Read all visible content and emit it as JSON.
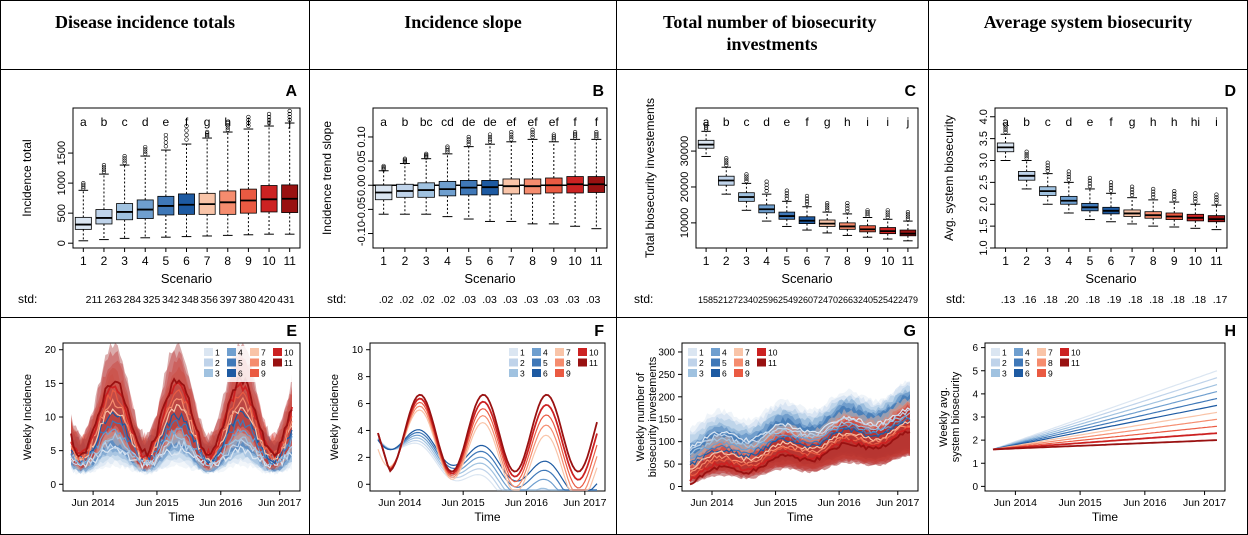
{
  "headers": [
    "Disease incidence totals",
    "Incidence slope",
    "Total number of biosecurity investments",
    "Average system biosecurity"
  ],
  "std_label": "std:",
  "chart_data": [
    {
      "type": "box",
      "panel": "A",
      "xlabel": "Scenario",
      "ylabel": "Incidence total",
      "ylim": [
        -80,
        2250
      ],
      "yticks": [
        0,
        500,
        1000,
        1500
      ],
      "ytick_labels": [
        "0",
        "500",
        "1000",
        "1500"
      ],
      "categories": [
        "1",
        "2",
        "3",
        "4",
        "5",
        "6",
        "7",
        "8",
        "9",
        "10",
        "11"
      ],
      "letters": [
        "a",
        "b",
        "c",
        "d",
        "e",
        "f",
        "g",
        "h",
        "i",
        "i",
        "j"
      ],
      "q1": [
        230,
        320,
        390,
        410,
        470,
        480,
        480,
        480,
        500,
        520,
        510
      ],
      "median": [
        310,
        420,
        520,
        560,
        620,
        640,
        650,
        680,
        710,
        730,
        740
      ],
      "q3": [
        430,
        560,
        660,
        720,
        780,
        820,
        830,
        870,
        900,
        960,
        970
      ],
      "whisker_low": [
        40,
        60,
        80,
        90,
        100,
        110,
        120,
        130,
        140,
        150,
        150
      ],
      "whisker_high": [
        880,
        1150,
        1300,
        1450,
        1550,
        1650,
        1750,
        1850,
        1900,
        1950,
        2000
      ],
      "outlier_max": [
        1000,
        1300,
        1450,
        1600,
        1800,
        1950,
        1850,
        2000,
        2100,
        2150,
        2200
      ],
      "std": [
        "211",
        "263",
        "284",
        "325",
        "342",
        "348",
        "356",
        "397",
        "380",
        "420",
        "431"
      ]
    },
    {
      "type": "box",
      "panel": "B",
      "xlabel": "Scenario",
      "ylabel": "Incidence trend slope",
      "ylim": [
        -0.13,
        0.16
      ],
      "yticks": [
        -0.1,
        -0.05,
        0.0,
        0.05,
        0.1
      ],
      "ytick_labels": [
        "-0.10",
        "-0.05",
        "0.00",
        "0.05",
        "0.10"
      ],
      "hline": 0.0,
      "categories": [
        "1",
        "2",
        "3",
        "4",
        "5",
        "6",
        "7",
        "8",
        "9",
        "10",
        "11"
      ],
      "letters": [
        "a",
        "b",
        "bc",
        "cd",
        "de",
        "de",
        "ef",
        "ef",
        "ef",
        "f",
        "f"
      ],
      "q1": [
        -0.03,
        -0.025,
        -0.025,
        -0.022,
        -0.02,
        -0.02,
        -0.018,
        -0.018,
        -0.016,
        -0.016,
        -0.015
      ],
      "median": [
        -0.015,
        -0.012,
        -0.01,
        -0.008,
        -0.005,
        -0.004,
        -0.002,
        -0.002,
        0.0,
        0.002,
        0.002
      ],
      "q3": [
        0.0,
        0.002,
        0.005,
        0.008,
        0.01,
        0.01,
        0.013,
        0.013,
        0.015,
        0.018,
        0.018
      ],
      "whisker_low": [
        -0.06,
        -0.06,
        -0.06,
        -0.065,
        -0.07,
        -0.075,
        -0.075,
        -0.08,
        -0.08,
        -0.085,
        -0.09
      ],
      "whisker_high": [
        0.03,
        0.045,
        0.055,
        0.065,
        0.08,
        0.085,
        0.09,
        0.095,
        0.09,
        0.095,
        0.095
      ],
      "outlier_max": [
        0.04,
        0.055,
        0.065,
        0.08,
        0.1,
        0.105,
        0.11,
        0.115,
        0.105,
        0.11,
        0.11
      ],
      "std": [
        ".02",
        ".02",
        ".02",
        ".02",
        ".03",
        ".03",
        ".03",
        ".03",
        ".03",
        ".03",
        ".03"
      ]
    },
    {
      "type": "box",
      "panel": "C",
      "xlabel": "Scenario",
      "ylabel": "Total biosecurity investements",
      "ylim": [
        3000,
        42000
      ],
      "yticks": [
        10000,
        20000,
        30000
      ],
      "ytick_labels": [
        "10000",
        "20000",
        "30000"
      ],
      "categories": [
        "1",
        "2",
        "3",
        "4",
        "5",
        "6",
        "7",
        "8",
        "9",
        "10",
        "11"
      ],
      "letters": [
        "a",
        "b",
        "c",
        "d",
        "e",
        "f",
        "g",
        "h",
        "i",
        "i",
        "j"
      ],
      "q1": [
        30800,
        20500,
        16000,
        12800,
        11000,
        9800,
        9000,
        8200,
        7500,
        7000,
        6400
      ],
      "median": [
        31800,
        21800,
        17200,
        13800,
        11900,
        10600,
        9800,
        9000,
        8200,
        7700,
        7000
      ],
      "q3": [
        33000,
        23000,
        18400,
        15000,
        13000,
        11700,
        10800,
        10000,
        9200,
        8700,
        8000
      ],
      "whisker_low": [
        28500,
        18000,
        13500,
        10500,
        9000,
        8000,
        7200,
        6500,
        6000,
        5500,
        5000
      ],
      "whisker_high": [
        35500,
        25500,
        21000,
        18000,
        16000,
        14500,
        13000,
        12500,
        11500,
        11000,
        10500
      ],
      "outlier_max": [
        37500,
        28000,
        23500,
        21500,
        19000,
        17500,
        15500,
        15500,
        13500,
        13500,
        13000
      ],
      "std": [
        "1585",
        "2127",
        "2340",
        "2596",
        "2549",
        "2607",
        "2470",
        "2663",
        "2405",
        "2542",
        "2479"
      ]
    },
    {
      "type": "box",
      "panel": "D",
      "xlabel": "Scenario",
      "ylabel": "Avg. system biosecurity",
      "ylim": [
        1.0,
        4.2
      ],
      "yticks": [
        1.0,
        1.5,
        2.0,
        2.5,
        3.0,
        3.5,
        4.0
      ],
      "ytick_labels": [
        "1.0",
        "1.5",
        "2.0",
        "2.5",
        "3.0",
        "3.5",
        "4.0"
      ],
      "categories": [
        "1",
        "2",
        "3",
        "4",
        "5",
        "6",
        "7",
        "8",
        "9",
        "10",
        "11"
      ],
      "letters": [
        "a",
        "b",
        "c",
        "d",
        "e",
        "f",
        "g",
        "h",
        "h",
        "hi",
        "i"
      ],
      "q1": [
        3.2,
        2.55,
        2.2,
        2.0,
        1.85,
        1.78,
        1.72,
        1.68,
        1.65,
        1.62,
        1.6
      ],
      "median": [
        3.3,
        2.65,
        2.3,
        2.08,
        1.93,
        1.85,
        1.79,
        1.75,
        1.72,
        1.69,
        1.66
      ],
      "q3": [
        3.4,
        2.75,
        2.4,
        2.18,
        2.02,
        1.93,
        1.87,
        1.83,
        1.8,
        1.77,
        1.74
      ],
      "whisker_low": [
        3.0,
        2.35,
        2.0,
        1.8,
        1.65,
        1.6,
        1.55,
        1.5,
        1.48,
        1.45,
        1.42
      ],
      "whisker_high": [
        3.6,
        3.0,
        2.7,
        2.5,
        2.35,
        2.25,
        2.15,
        2.1,
        2.05,
        2.0,
        1.98
      ],
      "outlier_max": [
        3.8,
        3.2,
        2.95,
        2.75,
        2.6,
        2.5,
        2.4,
        2.35,
        2.3,
        2.25,
        2.22
      ],
      "std": [
        ".13",
        ".16",
        ".18",
        ".20",
        ".18",
        ".19",
        ".18",
        ".18",
        ".18",
        ".18",
        ".17"
      ]
    },
    {
      "type": "line",
      "panel": "E",
      "xlabel": "Time",
      "ylabel": "Weekly Incidence",
      "ylim": [
        -1,
        21
      ],
      "yticks": [
        0,
        5,
        10,
        15,
        20
      ],
      "ytick_labels": [
        "0",
        "5",
        "10",
        "15",
        "20"
      ],
      "x_tick_labels": [
        "Jun 2014",
        "Jun 2015",
        "Jun 2016",
        "Jun 2017"
      ],
      "legend": [
        "1",
        "2",
        "3",
        "4",
        "5",
        "6",
        "7",
        "8",
        "9",
        "10",
        "11"
      ],
      "legend_position": "top-right"
    },
    {
      "type": "line",
      "panel": "F",
      "xlabel": "Time",
      "ylabel": "Weekly Incidence",
      "ylim": [
        -0.5,
        10.5
      ],
      "yticks": [
        0,
        2,
        4,
        6,
        8,
        10
      ],
      "ytick_labels": [
        "0",
        "2",
        "4",
        "6",
        "8",
        "10"
      ],
      "x_tick_labels": [
        "Jun 2014",
        "Jun 2015",
        "Jun 2016",
        "Jun 2017"
      ],
      "legend": [
        "1",
        "2",
        "3",
        "4",
        "5",
        "6",
        "7",
        "8",
        "9",
        "10",
        "11"
      ],
      "legend_position": "top-right"
    },
    {
      "type": "line",
      "panel": "G",
      "xlabel": "Time",
      "ylabel": "Weekly number of biosecurity investements",
      "ylim": [
        -10,
        320
      ],
      "yticks": [
        0,
        50,
        100,
        150,
        200,
        250,
        300
      ],
      "ytick_labels": [
        "0",
        "50",
        "100",
        "150",
        "200",
        "250",
        "300"
      ],
      "x_tick_labels": [
        "Jun 2014",
        "Jun 2015",
        "Jun 2016",
        "Jun 2017"
      ],
      "legend": [
        "1",
        "2",
        "3",
        "4",
        "5",
        "6",
        "7",
        "8",
        "9",
        "10",
        "11"
      ],
      "legend_position": "top-left"
    },
    {
      "type": "line",
      "panel": "H",
      "xlabel": "Time",
      "ylabel": "Weekly avg. system biosecurity",
      "ylim": [
        -0.2,
        6.2
      ],
      "yticks": [
        0,
        1,
        2,
        3,
        4,
        5,
        6
      ],
      "ytick_labels": [
        "0",
        "1",
        "2",
        "3",
        "4",
        "5",
        "6"
      ],
      "x_tick_labels": [
        "Jun 2014",
        "Jun 2015",
        "Jun 2016",
        "Jun 2017"
      ],
      "legend": [
        "1",
        "2",
        "3",
        "4",
        "5",
        "6",
        "7",
        "8",
        "9",
        "10",
        "11"
      ],
      "legend_position": "top-left"
    }
  ],
  "colors": [
    "#dbe6f2",
    "#bfd3ea",
    "#a0c2e0",
    "#6f9fcf",
    "#3f78b8",
    "#1d5aa2",
    "#f9c4a8",
    "#f58c6e",
    "#ea5a42",
    "#cc2222",
    "#991111"
  ]
}
